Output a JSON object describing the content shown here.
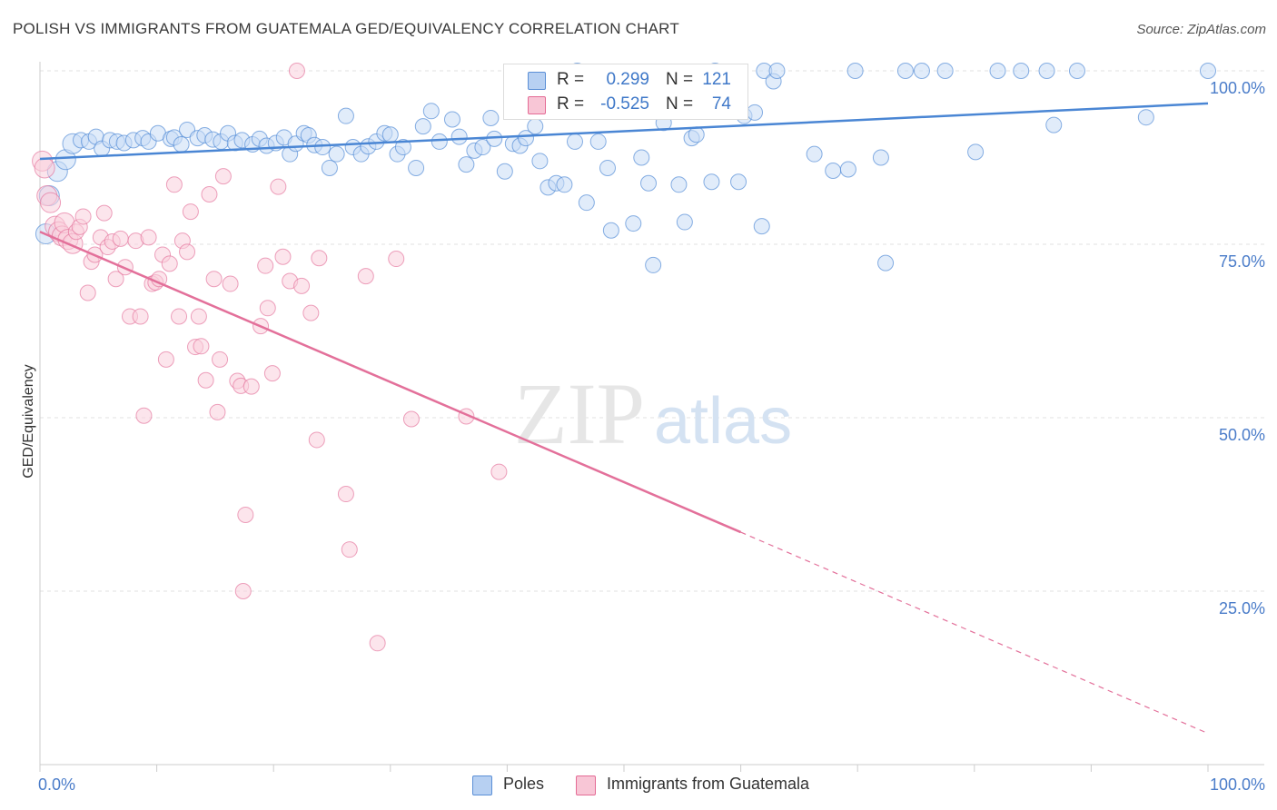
{
  "header": {
    "title": "POLISH VS IMMIGRANTS FROM GUATEMALA GED/EQUIVALENCY CORRELATION CHART",
    "source": "Source: ZipAtlas.com"
  },
  "watermark": {
    "part1": "ZIP",
    "part2": "atlas"
  },
  "legend": {
    "rows": [
      {
        "r_label": "R =",
        "r_value": "0.299",
        "n_label": "N =",
        "n_value": "121",
        "color": "#5b8fd6",
        "fill": "#b7d0f2"
      },
      {
        "r_label": "R =",
        "r_value": "-0.525",
        "n_label": "N =",
        "n_value": "74",
        "color": "#e46b95",
        "fill": "#f8c6d6"
      }
    ]
  },
  "chart_data": {
    "type": "scatter",
    "title": "POLISH VS IMMIGRANTS FROM GUATEMALA GED/EQUIVALENCY CORRELATION CHART",
    "xlabel": "",
    "ylabel": "GED/Equivalency",
    "xlim": [
      0,
      100
    ],
    "ylim": [
      0,
      100
    ],
    "x_tick_labels": [
      "0.0%",
      "100.0%"
    ],
    "y_tick_labels": [
      "100.0%",
      "75.0%",
      "50.0%",
      "25.0%"
    ],
    "y_tick_values": [
      100,
      75,
      50,
      25
    ],
    "grid": true,
    "legend_position": "top-center",
    "colors": {
      "poles": "#4a86d4",
      "guatemala": "#e3709a",
      "poles_fill": "#c9dcf5",
      "guatemala_fill": "#f9cfdd"
    },
    "series": [
      {
        "name": "Poles",
        "trend": {
          "x": [
            0,
            100
          ],
          "y": [
            87.3,
            95.3
          ],
          "dashed_from": null
        },
        "points": [
          [
            0.5,
            76.5
          ],
          [
            0.8,
            82
          ],
          [
            1.5,
            85.5
          ],
          [
            2.2,
            87.2
          ],
          [
            2.8,
            89.5
          ],
          [
            3.5,
            90
          ],
          [
            4.2,
            89.8
          ],
          [
            4.8,
            90.5
          ],
          [
            5.3,
            88.8
          ],
          [
            6,
            90
          ],
          [
            6.6,
            89.8
          ],
          [
            7.2,
            89.6
          ],
          [
            8,
            90
          ],
          [
            8.8,
            90.3
          ],
          [
            9.3,
            89.8
          ],
          [
            10.1,
            91
          ],
          [
            11.2,
            90.2
          ],
          [
            11.5,
            90.4
          ],
          [
            12.1,
            89.4
          ],
          [
            12.6,
            91.5
          ],
          [
            13.5,
            90.3
          ],
          [
            14.1,
            90.7
          ],
          [
            14.8,
            90.1
          ],
          [
            15.5,
            89.8
          ],
          [
            16.1,
            91
          ],
          [
            16.7,
            89.6
          ],
          [
            17.3,
            90
          ],
          [
            18.2,
            89.4
          ],
          [
            18.8,
            90.2
          ],
          [
            19.4,
            89.2
          ],
          [
            20.2,
            89.6
          ],
          [
            20.9,
            90.4
          ],
          [
            21.4,
            88
          ],
          [
            21.9,
            89.5
          ],
          [
            22.6,
            91
          ],
          [
            23,
            90.7
          ],
          [
            23.5,
            89.3
          ],
          [
            24.2,
            89
          ],
          [
            24.8,
            86
          ],
          [
            25.4,
            88
          ],
          [
            26.2,
            93.5
          ],
          [
            26.8,
            89
          ],
          [
            27.5,
            88
          ],
          [
            28.1,
            89.1
          ],
          [
            28.8,
            89.8
          ],
          [
            29.5,
            91
          ],
          [
            30,
            90.8
          ],
          [
            30.6,
            88
          ],
          [
            31.1,
            89
          ],
          [
            32.2,
            86
          ],
          [
            32.8,
            92
          ],
          [
            33.5,
            94.2
          ],
          [
            34.2,
            89.8
          ],
          [
            35.3,
            93
          ],
          [
            35.9,
            90.5
          ],
          [
            36.5,
            86.5
          ],
          [
            37.2,
            88.5
          ],
          [
            37.9,
            89
          ],
          [
            38.6,
            93.2
          ],
          [
            38.9,
            90.2
          ],
          [
            39.8,
            85.5
          ],
          [
            40.5,
            89.5
          ],
          [
            41.1,
            89.2
          ],
          [
            41.6,
            90.3
          ],
          [
            42.4,
            92
          ],
          [
            42.8,
            87
          ],
          [
            43.5,
            83.2
          ],
          [
            43.9,
            98.8
          ],
          [
            44.2,
            83.8
          ],
          [
            44.9,
            83.6
          ],
          [
            45.8,
            89.8
          ],
          [
            46,
            100
          ],
          [
            46.8,
            81
          ],
          [
            47.8,
            89.8
          ],
          [
            48.6,
            86
          ],
          [
            48.9,
            77
          ],
          [
            49.8,
            98
          ],
          [
            50.3,
            94.2
          ],
          [
            50.8,
            78
          ],
          [
            51.5,
            87.5
          ],
          [
            52.1,
            83.8
          ],
          [
            52.5,
            72
          ],
          [
            52.9,
            95
          ],
          [
            53.4,
            92.5
          ],
          [
            54.7,
            83.6
          ],
          [
            55.2,
            78.2
          ],
          [
            55.8,
            90.3
          ],
          [
            56.2,
            90.8
          ],
          [
            57.5,
            84
          ],
          [
            57.8,
            100
          ],
          [
            59.1,
            98.5
          ],
          [
            59.8,
            84
          ],
          [
            60.3,
            93.5
          ],
          [
            61.2,
            94
          ],
          [
            61.8,
            77.6
          ],
          [
            62,
            100
          ],
          [
            62.8,
            98.5
          ],
          [
            63.1,
            100
          ],
          [
            66.3,
            88
          ],
          [
            67.9,
            85.6
          ],
          [
            69.2,
            85.8
          ],
          [
            69.8,
            100
          ],
          [
            72,
            87.5
          ],
          [
            72.4,
            72.3
          ],
          [
            74.1,
            100
          ],
          [
            75.5,
            100
          ],
          [
            77.5,
            100
          ],
          [
            80.1,
            88.3
          ],
          [
            82,
            100
          ],
          [
            84,
            100
          ],
          [
            86.2,
            100
          ],
          [
            86.8,
            92.2
          ],
          [
            88.8,
            100
          ],
          [
            94.7,
            93.3
          ],
          [
            100,
            100
          ]
        ]
      },
      {
        "name": "Immigrants from Guatemala",
        "trend": {
          "x": [
            0,
            60,
            100
          ],
          "y": [
            76.8,
            33.5,
            4.5
          ],
          "dashed_from": 60
        },
        "points": [
          [
            0.2,
            87
          ],
          [
            0.4,
            86
          ],
          [
            0.6,
            82
          ],
          [
            0.9,
            81
          ],
          [
            1.3,
            77.6
          ],
          [
            1.6,
            76.8
          ],
          [
            1.9,
            76.2
          ],
          [
            2.1,
            78.1
          ],
          [
            2.4,
            75.7
          ],
          [
            2.8,
            75.1
          ],
          [
            3.1,
            76.8
          ],
          [
            3.4,
            77.5
          ],
          [
            3.7,
            79
          ],
          [
            4.1,
            68
          ],
          [
            4.4,
            72.5
          ],
          [
            4.7,
            73.5
          ],
          [
            5.2,
            76
          ],
          [
            5.5,
            79.5
          ],
          [
            5.8,
            74.6
          ],
          [
            6.2,
            75.4
          ],
          [
            6.5,
            70
          ],
          [
            6.9,
            75.8
          ],
          [
            7.3,
            71.7
          ],
          [
            7.7,
            64.6
          ],
          [
            8.2,
            75.5
          ],
          [
            8.6,
            64.6
          ],
          [
            8.9,
            50.3
          ],
          [
            9.3,
            76
          ],
          [
            9.6,
            69.3
          ],
          [
            9.9,
            69.5
          ],
          [
            10.2,
            70
          ],
          [
            10.5,
            73.5
          ],
          [
            10.8,
            58.4
          ],
          [
            11.1,
            72.2
          ],
          [
            11.5,
            83.6
          ],
          [
            11.9,
            64.6
          ],
          [
            12.2,
            75.5
          ],
          [
            12.6,
            73.9
          ],
          [
            12.9,
            79.7
          ],
          [
            13.3,
            60.2
          ],
          [
            13.6,
            64.6
          ],
          [
            13.8,
            60.3
          ],
          [
            14.2,
            55.4
          ],
          [
            14.5,
            82.2
          ],
          [
            14.9,
            70
          ],
          [
            15.2,
            50.8
          ],
          [
            15.4,
            58.4
          ],
          [
            15.7,
            84.8
          ],
          [
            16.3,
            69.3
          ],
          [
            16.9,
            55.3
          ],
          [
            17.2,
            54.6
          ],
          [
            17.4,
            25
          ],
          [
            17.6,
            36
          ],
          [
            18.1,
            54.5
          ],
          [
            18.9,
            63.2
          ],
          [
            19.3,
            71.9
          ],
          [
            19.5,
            65.8
          ],
          [
            19.9,
            56.4
          ],
          [
            20.4,
            83.3
          ],
          [
            20.8,
            73.2
          ],
          [
            21.4,
            69.7
          ],
          [
            22,
            100
          ],
          [
            22.4,
            69
          ],
          [
            23.2,
            65.1
          ],
          [
            23.7,
            46.8
          ],
          [
            23.9,
            73
          ],
          [
            26.2,
            39
          ],
          [
            26.5,
            31
          ],
          [
            27.9,
            70.4
          ],
          [
            28.9,
            17.5
          ],
          [
            30.5,
            72.9
          ],
          [
            31.8,
            49.8
          ],
          [
            36.5,
            50.2
          ],
          [
            39.3,
            42.2
          ]
        ]
      }
    ]
  },
  "bottom_legend": {
    "items": [
      {
        "label": "Poles"
      },
      {
        "label": "Immigrants from Guatemala"
      }
    ]
  }
}
